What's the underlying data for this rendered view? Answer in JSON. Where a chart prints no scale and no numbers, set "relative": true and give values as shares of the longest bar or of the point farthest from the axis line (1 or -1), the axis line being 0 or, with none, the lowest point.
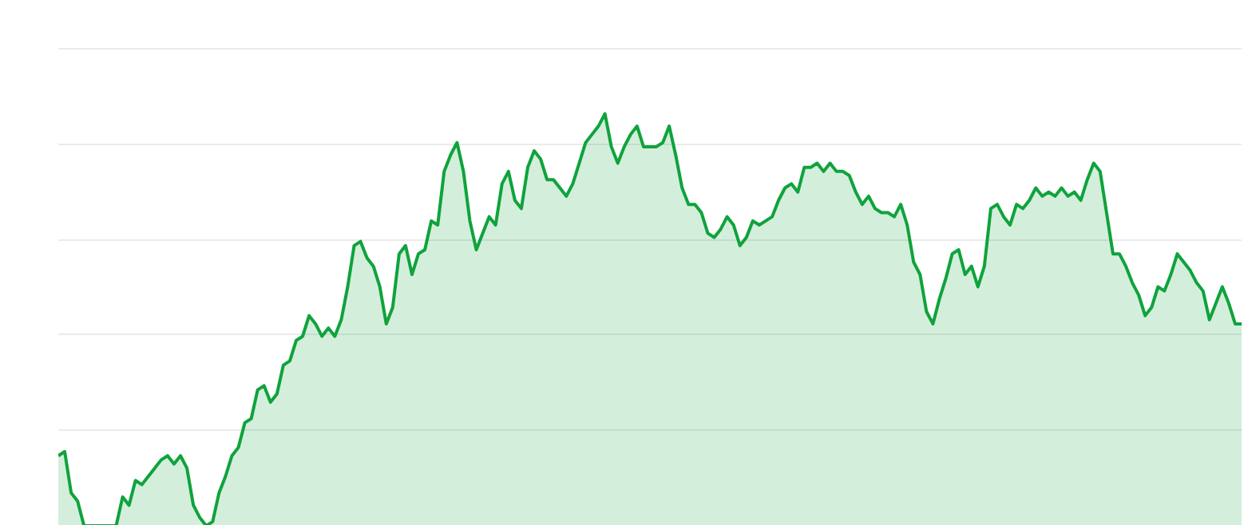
{
  "chart_data": {
    "type": "area",
    "relative": true,
    "grid": "y",
    "color": "#0fa33c",
    "categories": [
      null,
      null,
      null,
      null,
      null,
      null,
      null,
      null,
      null,
      null,
      null,
      null,
      null,
      null,
      null,
      null,
      null,
      null,
      null,
      null,
      null,
      null,
      null,
      null,
      null,
      null,
      null,
      null,
      null,
      null,
      null,
      null,
      null,
      null,
      null,
      null,
      null,
      null,
      null,
      null,
      null,
      null,
      null,
      null,
      null,
      null,
      null,
      null,
      null,
      null,
      null,
      null,
      null,
      null,
      null,
      null,
      null,
      null,
      null,
      null,
      null,
      null,
      null,
      null,
      null,
      null,
      null,
      null,
      null,
      null,
      null,
      null,
      null,
      null,
      null,
      null,
      null,
      null,
      null,
      null,
      null,
      null,
      null,
      null,
      null,
      null,
      null,
      null,
      null,
      null,
      null,
      null,
      null,
      null,
      null,
      null,
      null,
      null,
      null,
      null,
      null,
      null,
      null,
      null,
      null,
      null,
      null,
      null,
      null,
      null,
      null,
      null,
      null,
      null,
      null,
      null,
      null,
      null,
      null,
      null,
      null,
      null,
      null,
      null,
      null,
      null,
      null,
      null,
      null,
      null,
      null,
      null,
      null,
      null,
      null,
      null,
      null,
      null,
      null,
      null,
      null,
      null,
      null,
      null,
      null,
      null,
      null,
      null,
      null,
      null,
      null,
      null,
      null,
      null,
      null,
      null,
      null,
      null,
      null,
      null,
      null,
      null,
      null,
      null,
      null,
      null,
      null,
      null,
      null,
      null,
      null,
      null,
      null,
      null,
      null,
      null,
      null,
      null,
      null,
      null,
      null,
      null,
      null,
      null,
      null
    ],
    "values": [
      0.17,
      0.18,
      0.08,
      0.06,
      0,
      0,
      0,
      0,
      0,
      0,
      0.07,
      0.05,
      0.11,
      0.1,
      0.12,
      0.14,
      0.16,
      0.17,
      0.15,
      0.17,
      0.14,
      0.05,
      0.02,
      0,
      0.01,
      0.08,
      0.12,
      0.17,
      0.19,
      0.25,
      0.26,
      0.33,
      0.34,
      0.3,
      0.32,
      0.39,
      0.4,
      0.45,
      0.46,
      0.51,
      0.49,
      0.46,
      0.48,
      0.46,
      0.5,
      0.58,
      0.68,
      0.69,
      0.65,
      0.63,
      0.58,
      0.49,
      0.53,
      0.66,
      0.68,
      0.61,
      0.66,
      0.67,
      0.74,
      0.73,
      0.86,
      0.9,
      0.93,
      0.86,
      0.74,
      0.67,
      0.71,
      0.75,
      0.73,
      0.83,
      0.86,
      0.79,
      0.77,
      0.87,
      0.91,
      0.89,
      0.84,
      0.84,
      0.82,
      0.8,
      0.83,
      0.88,
      0.93,
      0.95,
      0.97,
      1,
      0.92,
      0.88,
      0.92,
      0.95,
      0.97,
      0.92,
      0.92,
      0.92,
      0.93,
      0.97,
      0.9,
      0.82,
      0.78,
      0.78,
      0.76,
      0.71,
      0.7,
      0.72,
      0.75,
      0.73,
      0.68,
      0.7,
      0.74,
      0.73,
      0.74,
      0.75,
      0.79,
      0.82,
      0.83,
      0.81,
      0.87,
      0.87,
      0.88,
      0.86,
      0.88,
      0.86,
      0.86,
      0.85,
      0.81,
      0.78,
      0.8,
      0.77,
      0.76,
      0.76,
      0.75,
      0.78,
      0.73,
      0.64,
      0.61,
      0.52,
      0.49,
      0.55,
      0.6,
      0.66,
      0.67,
      0.61,
      0.63,
      0.58,
      0.63,
      0.77,
      0.78,
      0.75,
      0.73,
      0.78,
      0.77,
      0.79,
      0.82,
      0.8,
      0.81,
      0.8,
      0.82,
      0.8,
      0.81,
      0.79,
      0.84,
      0.88,
      0.86,
      0.76,
      0.66,
      0.66,
      0.63,
      0.59,
      0.56,
      0.51,
      0.53,
      0.58,
      0.57,
      0.61,
      0.66,
      0.64,
      0.62,
      0.59,
      0.57,
      0.5,
      0.54,
      0.58,
      0.54,
      0.49,
      0.49
    ]
  }
}
